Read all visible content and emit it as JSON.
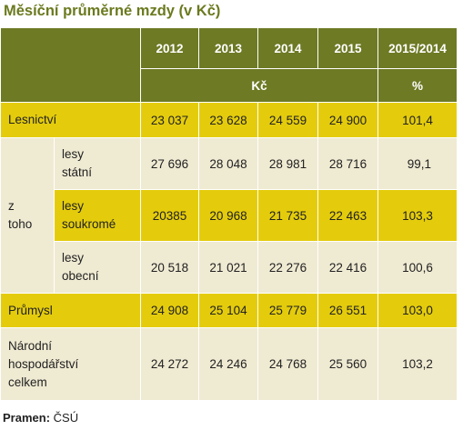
{
  "title": "Měsíční průměrné mzdy (v Kč)",
  "header": {
    "years": [
      "2012",
      "2013",
      "2014",
      "2015",
      "2015/2014"
    ],
    "unit_kc": "Kč",
    "unit_pct": "%"
  },
  "rows": {
    "lesnictvi": {
      "label": "Lesnictví",
      "values": [
        "23 037",
        "23 628",
        "24 559",
        "24 900",
        "101,4"
      ]
    },
    "z_toho": "z\ntoho",
    "statni": {
      "label": "lesy\nstátní",
      "values": [
        "27 696",
        "28 048",
        "28 981",
        "28 716",
        "99,1"
      ]
    },
    "soukrome": {
      "label": "lesy\nsoukromé",
      "values": [
        "20385",
        "20 968",
        "21 735",
        "22 463",
        "103,3"
      ]
    },
    "obecni": {
      "label": "lesy\nobecní",
      "values": [
        "20 518",
        "21 021",
        "22 276",
        "22 416",
        "100,6"
      ]
    },
    "prumysl": {
      "label": "Průmysl",
      "values": [
        "24 908",
        "25 104",
        "25 779",
        "26 551",
        "103,0"
      ]
    },
    "narodni": {
      "label": "Národní\nhospodářství\ncelkem",
      "values": [
        "24 272",
        "24 246",
        "24 768",
        "25 560",
        "103,2"
      ]
    }
  },
  "source": {
    "label": "Pramen:",
    "value": "ČSÚ"
  },
  "colors": {
    "header": "#6e7a24",
    "highlight": "#e4cc0c",
    "row": "#efead2",
    "title": "#6b7a1f"
  }
}
